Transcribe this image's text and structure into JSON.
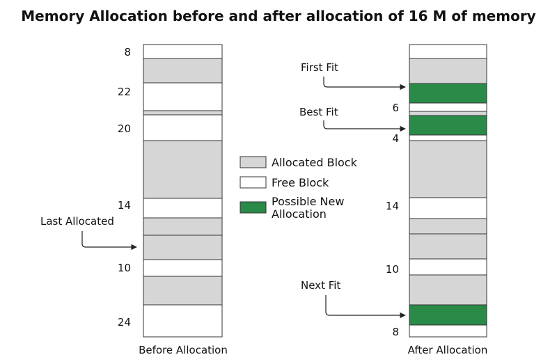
{
  "title": "Memory Allocation before and after allocation of 16 M of memory",
  "colors": {
    "allocated": "#d6d6d6",
    "free": "#ffffff",
    "possible_new": "#2a8a47"
  },
  "legend": {
    "allocated": "Allocated Block",
    "free": "Free Block",
    "possible_new_line1": "Possible New",
    "possible_new_line2": "Allocation"
  },
  "before": {
    "caption": "Before Allocation",
    "blocks": [
      {
        "kind": "free",
        "label": "8"
      },
      {
        "kind": "allocated"
      },
      {
        "kind": "free",
        "label": "22"
      },
      {
        "kind": "allocated"
      },
      {
        "kind": "free",
        "label": "20"
      },
      {
        "kind": "allocated"
      },
      {
        "kind": "free",
        "label": "14"
      },
      {
        "kind": "allocated"
      },
      {
        "kind": "allocated"
      },
      {
        "kind": "free",
        "label": "10"
      },
      {
        "kind": "allocated"
      },
      {
        "kind": "free",
        "label": "24"
      }
    ],
    "pointer_label": "Last Allocated"
  },
  "after": {
    "caption": "After Allocation",
    "blocks": [
      {
        "kind": "free"
      },
      {
        "kind": "allocated"
      },
      {
        "kind": "possible_new"
      },
      {
        "kind": "free",
        "label": "6"
      },
      {
        "kind": "allocated"
      },
      {
        "kind": "possible_new"
      },
      {
        "kind": "free",
        "label": "4"
      },
      {
        "kind": "allocated"
      },
      {
        "kind": "free",
        "label": "14"
      },
      {
        "kind": "allocated"
      },
      {
        "kind": "allocated"
      },
      {
        "kind": "free",
        "label": "10"
      },
      {
        "kind": "allocated"
      },
      {
        "kind": "possible_new"
      },
      {
        "kind": "free",
        "label": "8"
      }
    ],
    "pointers": [
      {
        "label": "First Fit"
      },
      {
        "label": "Best Fit"
      },
      {
        "label": "Next Fit"
      }
    ]
  }
}
